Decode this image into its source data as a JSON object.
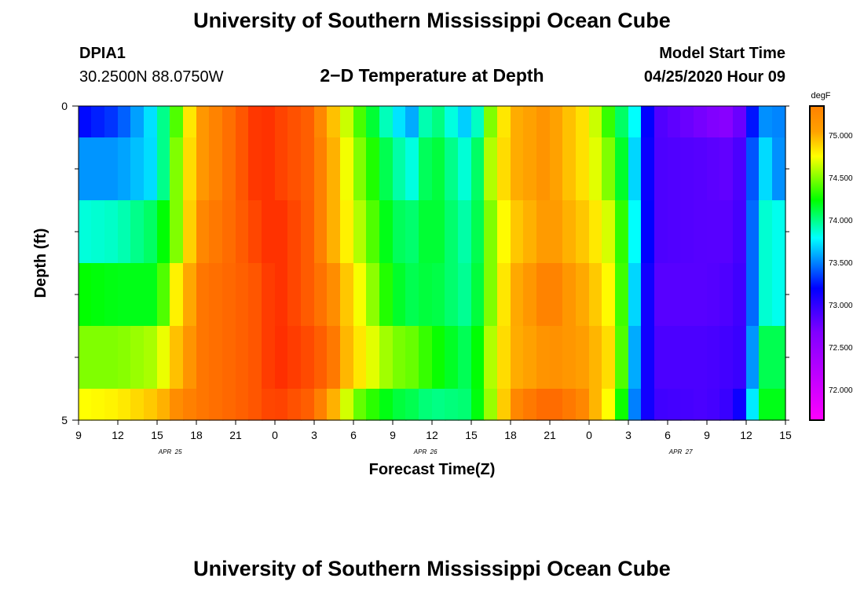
{
  "header": {
    "title": "University of Southern Mississippi Ocean Cube",
    "footer_title": "University of Southern Mississippi Ocean Cube",
    "station_name": "DPIA1",
    "station_coords": "30.2500N 88.0750W",
    "plot_title": "2−D Temperature at Depth",
    "start_label": "Model Start Time",
    "start_value": "04/25/2020 Hour 09"
  },
  "chart_data": {
    "type": "heatmap",
    "title": "2−D Temperature at Depth",
    "xlabel": "Forecast Time(Z)",
    "ylabel": "Depth (ft)",
    "x_start_hour": 9,
    "x_end_hour": 63,
    "x_tick_labels": [
      "9",
      "12",
      "15",
      "18",
      "21",
      "0",
      "3",
      "6",
      "9",
      "12",
      "15",
      "18",
      "21",
      "0",
      "3",
      "6",
      "9",
      "12",
      "15"
    ],
    "date_labels": [
      {
        "label": "APR  25",
        "hour": 16
      },
      {
        "label": "APR  26",
        "hour": 35.5
      },
      {
        "label": "APR  27",
        "hour": 55
      }
    ],
    "y_labels": [
      "0",
      "5"
    ],
    "ylim": [
      0,
      5
    ],
    "depth_rows": [
      0,
      0.5,
      1.5,
      2.5,
      3.5,
      4.5,
      5
    ],
    "colorbar": {
      "unit": "degF",
      "min": 71.65,
      "max": 75.35,
      "tick_labels": [
        "75.000",
        "74.500",
        "74.000",
        "73.500",
        "73.000",
        "72.500",
        "72.000"
      ],
      "tick_values": [
        75.0,
        74.5,
        74.0,
        73.5,
        73.0,
        72.5,
        72.0
      ]
    },
    "anchors": [
      {
        "hour": 9,
        "values": [
          73.2,
          73.55,
          73.85,
          74.25,
          74.5,
          74.75
        ]
      },
      {
        "hour": 12,
        "values": [
          73.35,
          73.55,
          73.9,
          74.2,
          74.5,
          74.8
        ]
      },
      {
        "hour": 15,
        "values": [
          73.8,
          73.75,
          74.1,
          74.2,
          74.6,
          74.95
        ]
      },
      {
        "hour": 16.5,
        "values": [
          74.4,
          74.5,
          74.5,
          74.8,
          74.95,
          75.1
        ]
      },
      {
        "hour": 18,
        "values": [
          75.05,
          75.05,
          75.1,
          75.15,
          75.15,
          75.15
        ]
      },
      {
        "hour": 21,
        "values": [
          75.2,
          75.2,
          75.2,
          75.2,
          75.2,
          75.2
        ]
      },
      {
        "hour": 23,
        "values": [
          75.35,
          75.35,
          75.3,
          75.25,
          75.25,
          75.25
        ]
      },
      {
        "hour": 24,
        "values": [
          75.3,
          75.3,
          75.35,
          75.35,
          75.35,
          75.3
        ]
      },
      {
        "hour": 27,
        "values": [
          75.2,
          75.2,
          75.2,
          75.2,
          75.25,
          75.2
        ]
      },
      {
        "hour": 28.5,
        "values": [
          74.95,
          75.0,
          75.0,
          75.1,
          75.15,
          75.0
        ]
      },
      {
        "hour": 30,
        "values": [
          74.5,
          74.6,
          74.7,
          74.85,
          74.9,
          74.5
        ]
      },
      {
        "hour": 33,
        "values": [
          73.8,
          74.0,
          74.1,
          74.2,
          74.5,
          74.15
        ]
      },
      {
        "hour": 34.5,
        "values": [
          73.6,
          73.85,
          74.05,
          74.1,
          74.45,
          74.1
        ]
      },
      {
        "hour": 36,
        "values": [
          74.1,
          74.2,
          74.2,
          74.15,
          74.3,
          74.0
        ]
      },
      {
        "hour": 39,
        "values": [
          73.6,
          73.8,
          73.9,
          73.95,
          74.05,
          74.05
        ]
      },
      {
        "hour": 40.5,
        "values": [
          74.5,
          74.6,
          74.5,
          74.5,
          74.6,
          74.55
        ]
      },
      {
        "hour": 42,
        "values": [
          75.0,
          75.0,
          74.9,
          75.0,
          75.0,
          75.1
        ]
      },
      {
        "hour": 45,
        "values": [
          75.1,
          75.1,
          75.1,
          75.15,
          75.1,
          75.2
        ]
      },
      {
        "hour": 48,
        "values": [
          74.8,
          74.8,
          74.9,
          75.0,
          75.05,
          75.1
        ]
      },
      {
        "hour": 50,
        "values": [
          74.2,
          74.4,
          74.6,
          74.7,
          74.8,
          74.65
        ]
      },
      {
        "hour": 51.5,
        "values": [
          73.8,
          73.7,
          73.8,
          73.7,
          73.6,
          73.5
        ]
      },
      {
        "hour": 53,
        "values": [
          72.9,
          72.9,
          72.9,
          72.85,
          72.9,
          72.95
        ]
      },
      {
        "hour": 57,
        "values": [
          72.7,
          72.85,
          72.85,
          72.85,
          72.9,
          72.9
        ]
      },
      {
        "hour": 59,
        "values": [
          72.6,
          72.8,
          72.85,
          72.9,
          72.95,
          73.0
        ]
      },
      {
        "hour": 60,
        "values": [
          72.95,
          73.0,
          73.0,
          73.0,
          73.0,
          73.3
        ]
      },
      {
        "hour": 61,
        "values": [
          73.55,
          73.8,
          73.9,
          73.9,
          74.1,
          74.2
        ]
      },
      {
        "hour": 63,
        "values": [
          73.5,
          73.45,
          73.8,
          73.8,
          74.1,
          74.2
        ]
      }
    ]
  }
}
